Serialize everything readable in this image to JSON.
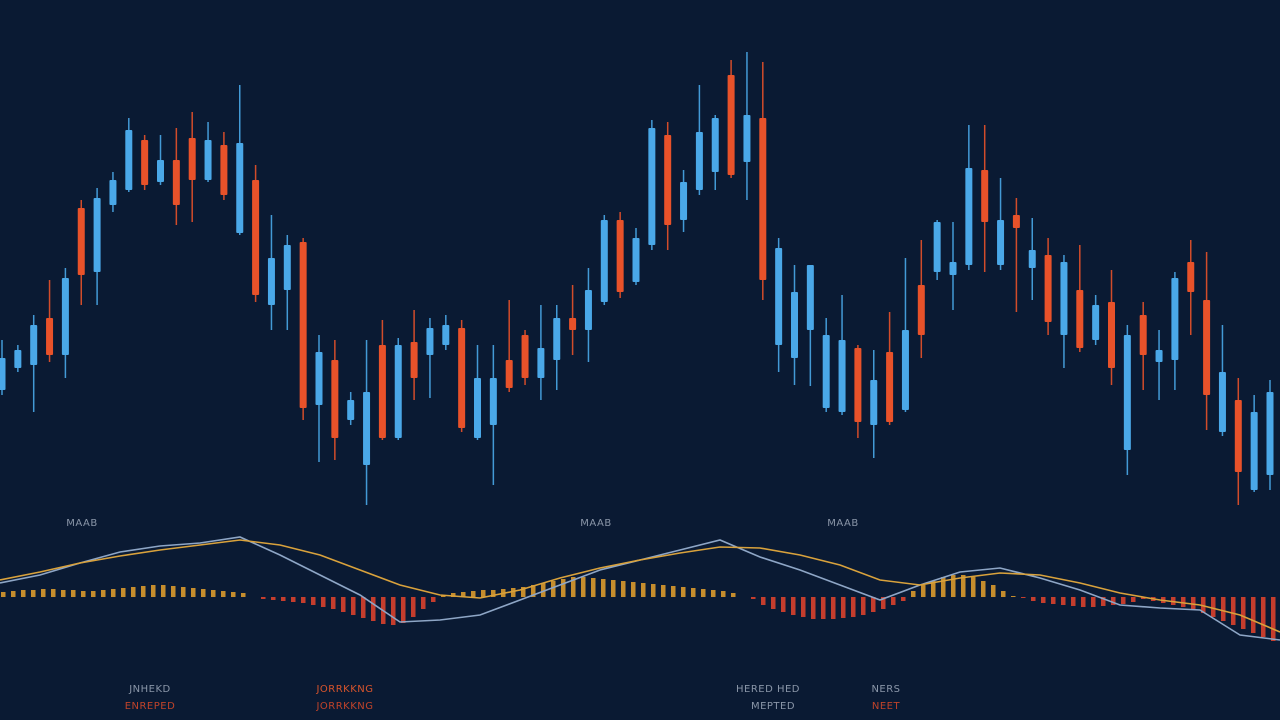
{
  "chart_data": [
    {
      "type": "candlestick",
      "up_color": "#4aa8e8",
      "down_color": "#e8522a",
      "ylim": [
        0,
        520
      ],
      "open": [
        130,
        152,
        155,
        202,
        165,
        312,
        248,
        315,
        330,
        380,
        338,
        360,
        382,
        340,
        375,
        287,
        340,
        215,
        230,
        278,
        115,
        160,
        100,
        55,
        175,
        82,
        178,
        165,
        175,
        192,
        82,
        95,
        160,
        185,
        142,
        160,
        202,
        190,
        218,
        300,
        238,
        275,
        385,
        300,
        330,
        348,
        445,
        358,
        402,
        175,
        162,
        190,
        112,
        108,
        172,
        95,
        168,
        110,
        235,
        248,
        245,
        255,
        350,
        255,
        305,
        252,
        265,
        185,
        230,
        180,
        218,
        70,
        205,
        158,
        160,
        258,
        220,
        88,
        120,
        30,
        45
      ],
      "high": [
        180,
        175,
        205,
        240,
        252,
        320,
        332,
        348,
        402,
        385,
        385,
        392,
        408,
        398,
        388,
        435,
        355,
        305,
        285,
        282,
        185,
        180,
        128,
        180,
        200,
        182,
        210,
        202,
        205,
        200,
        175,
        175,
        220,
        190,
        215,
        215,
        235,
        252,
        305,
        308,
        292,
        400,
        398,
        350,
        435,
        405,
        460,
        468,
        458,
        282,
        255,
        255,
        202,
        225,
        175,
        170,
        208,
        262,
        280,
        300,
        298,
        395,
        395,
        342,
        322,
        302,
        282,
        265,
        275,
        225,
        250,
        195,
        218,
        190,
        248,
        280,
        268,
        195,
        142,
        125,
        140
      ],
      "low": [
        125,
        148,
        108,
        158,
        142,
        215,
        215,
        308,
        328,
        330,
        335,
        295,
        298,
        338,
        320,
        285,
        218,
        190,
        190,
        100,
        58,
        60,
        95,
        15,
        80,
        80,
        120,
        122,
        170,
        88,
        80,
        35,
        128,
        135,
        120,
        130,
        165,
        158,
        215,
        222,
        235,
        270,
        270,
        288,
        325,
        330,
        342,
        320,
        220,
        148,
        135,
        134,
        108,
        105,
        82,
        62,
        95,
        108,
        162,
        240,
        210,
        250,
        248,
        250,
        208,
        220,
        185,
        152,
        168,
        175,
        135,
        45,
        130,
        120,
        130,
        185,
        90,
        84,
        15,
        28,
        30
      ],
      "close": [
        162,
        170,
        195,
        165,
        242,
        245,
        322,
        340,
        390,
        335,
        360,
        315,
        340,
        380,
        325,
        377,
        225,
        262,
        275,
        112,
        168,
        82,
        120,
        128,
        82,
        175,
        142,
        192,
        195,
        92,
        142,
        142,
        132,
        142,
        172,
        202,
        190,
        230,
        300,
        228,
        282,
        392,
        295,
        338,
        388,
        402,
        345,
        405,
        240,
        272,
        228,
        255,
        185,
        180,
        98,
        140,
        98,
        190,
        185,
        298,
        258,
        352,
        298,
        300,
        292,
        270,
        198,
        258,
        172,
        215,
        152,
        185,
        165,
        170,
        242,
        228,
        125,
        148,
        48,
        108,
        128
      ]
    },
    {
      "type": "macd",
      "ylim": [
        -60,
        60
      ],
      "series": [
        {
          "color": "#8ea6c6",
          "values": [
            14,
            22,
            34,
            45,
            51,
            54,
            60,
            42,
            22,
            2,
            -25,
            -23,
            -18,
            -3,
            12,
            27,
            37,
            47,
            57,
            40,
            27,
            12,
            -3,
            12,
            25,
            29,
            19,
            7,
            -8,
            -11,
            -13,
            -38,
            -43
          ]
        },
        {
          "color": "#d9a23c",
          "values": [
            17,
            25,
            34,
            41,
            47,
            52,
            57,
            52,
            42,
            27,
            12,
            2,
            -1,
            7,
            19,
            29,
            37,
            44,
            50,
            49,
            42,
            32,
            17,
            12,
            19,
            24,
            22,
            14,
            4,
            -3,
            -8,
            -18,
            -35
          ]
        }
      ],
      "histogram": {
        "up_color": "#d99a2c",
        "down_color": "#d8412c",
        "values": [
          5,
          6,
          7,
          7,
          8,
          8,
          7,
          7,
          6,
          6,
          7,
          8,
          9,
          10,
          11,
          12,
          12,
          11,
          10,
          9,
          8,
          7,
          6,
          5,
          4,
          0,
          -2,
          -3,
          -4,
          -5,
          -6,
          -8,
          -10,
          -12,
          -15,
          -18,
          -21,
          -24,
          -27,
          -28,
          -26,
          -20,
          -12,
          -5,
          2,
          4,
          5,
          6,
          7,
          7,
          8,
          9,
          10,
          12,
          14,
          16,
          18,
          20,
          20,
          19,
          18,
          17,
          16,
          15,
          14,
          13,
          12,
          11,
          10,
          9,
          8,
          7,
          6,
          4,
          0,
          -2,
          -8,
          -12,
          -15,
          -18,
          -20,
          -22,
          -22,
          -22,
          -21,
          -20,
          -18,
          -15,
          -12,
          -8,
          -4,
          6,
          12,
          16,
          20,
          22,
          22,
          20,
          16,
          12,
          6,
          1,
          -1,
          -4,
          -6,
          -7,
          -8,
          -9,
          -10,
          -10,
          -9,
          -8,
          -7,
          -5,
          -2,
          -4,
          -6,
          -8,
          -10,
          -13,
          -16,
          -20,
          -24,
          -28,
          -32,
          -36,
          -40,
          -44
        ]
      }
    }
  ],
  "annotations": [
    "MAAB",
    "MAAB",
    "MAAB",
    "JNHEKD",
    "ENREPED",
    "JORRKKNG",
    "JORRKKNG",
    "HERED HED",
    "MEPTED",
    "NERS",
    "NEET"
  ]
}
